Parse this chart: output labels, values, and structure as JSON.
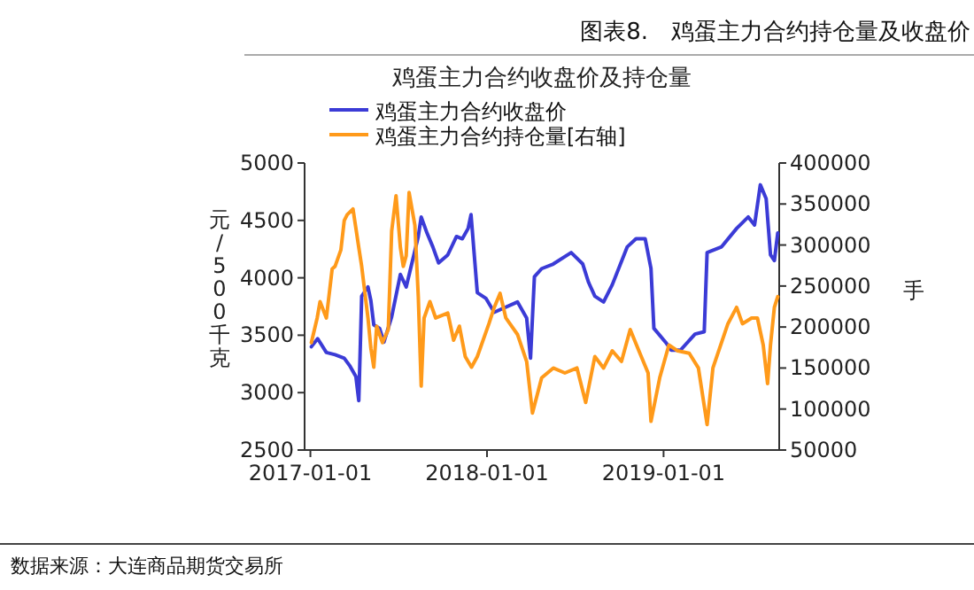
{
  "chart_data": {
    "type": "line",
    "title": "图表8.　鸡蛋主力合约持仓量及收盘价",
    "subtitle": "鸡蛋主力合约收盘价及持仓量",
    "ylabel": "元/500千克",
    "y2label": "手",
    "annotations": [
      "数据来源：大连商品期货交易所"
    ],
    "xlim": [
      "2016-12-20",
      "2019-08-28"
    ],
    "xticks": [
      "2017-01-01",
      "2018-01-01",
      "2019-01-01"
    ],
    "ylim": [
      2500,
      5000
    ],
    "yticks": [
      2500,
      3000,
      3500,
      4000,
      4500,
      5000
    ],
    "y2lim": [
      50000,
      400000
    ],
    "y2ticks": [
      50000,
      100000,
      150000,
      200000,
      250000,
      300000,
      350000,
      400000
    ],
    "legend": "top left",
    "grid": false,
    "marker": "none",
    "line_style": "solid",
    "series": [
      {
        "name": "鸡蛋主力合约收盘价",
        "color": "#3b3bd6",
        "x": [
          "2017-01-03",
          "2017-01-16",
          "2017-02-03",
          "2017-02-21",
          "2017-03-12",
          "2017-03-24",
          "2017-04-05",
          "2017-04-11",
          "2017-04-17",
          "2017-04-30",
          "2017-05-06",
          "2017-05-12",
          "2017-05-24",
          "2017-06-02",
          "2017-06-18",
          "2017-07-06",
          "2017-07-18",
          "2017-08-12",
          "2017-08-18",
          "2017-08-30",
          "2017-09-11",
          "2017-09-23",
          "2017-10-12",
          "2017-10-30",
          "2017-11-11",
          "2017-11-23",
          "2017-11-29",
          "2017-12-12",
          "2017-12-30",
          "2018-01-16",
          "2018-03-05",
          "2018-03-24",
          "2018-04-01",
          "2018-04-09",
          "2018-04-24",
          "2018-05-18",
          "2018-06-24",
          "2018-07-18",
          "2018-07-30",
          "2018-08-12",
          "2018-08-30",
          "2018-09-17",
          "2018-10-18",
          "2018-11-05",
          "2018-11-24",
          "2018-12-06",
          "2018-12-12",
          "2019-01-05",
          "2019-01-17",
          "2019-02-05",
          "2019-03-07",
          "2019-03-26",
          "2019-04-01",
          "2019-05-01",
          "2019-06-01",
          "2019-06-25",
          "2019-07-08",
          "2019-07-20",
          "2019-08-01",
          "2019-08-10",
          "2019-08-18",
          "2019-08-25"
        ],
        "values": [
          3400,
          3470,
          3350,
          3330,
          3300,
          3230,
          3140,
          2930,
          3840,
          3920,
          3800,
          3590,
          3560,
          3440,
          3660,
          4030,
          3920,
          4360,
          4530,
          4390,
          4270,
          4130,
          4200,
          4360,
          4340,
          4430,
          4550,
          3870,
          3820,
          3700,
          3790,
          3650,
          3300,
          4010,
          4080,
          4120,
          4220,
          4120,
          3960,
          3840,
          3790,
          3940,
          4270,
          4340,
          4340,
          4080,
          3560,
          3440,
          3370,
          3370,
          3510,
          3530,
          4220,
          4270,
          4430,
          4530,
          4460,
          4810,
          4690,
          4200,
          4150,
          4390
        ]
      },
      {
        "name": "鸡蛋主力合约持仓量[右轴]",
        "color": "#ff9a1a",
        "axis": "y2",
        "x": [
          "2017-01-03",
          "2017-01-15",
          "2017-01-21",
          "2017-02-03",
          "2017-02-15",
          "2017-02-21",
          "2017-03-05",
          "2017-03-12",
          "2017-03-18",
          "2017-03-30",
          "2017-04-11",
          "2017-04-17",
          "2017-04-30",
          "2017-05-06",
          "2017-05-12",
          "2017-05-18",
          "2017-05-30",
          "2017-06-11",
          "2017-06-18",
          "2017-06-27",
          "2017-07-06",
          "2017-07-12",
          "2017-07-18",
          "2017-07-24",
          "2017-08-05",
          "2017-08-12",
          "2017-08-18",
          "2017-08-24",
          "2017-09-05",
          "2017-09-17",
          "2017-10-12",
          "2017-10-24",
          "2017-11-05",
          "2017-11-17",
          "2017-11-30",
          "2017-12-12",
          "2018-01-05",
          "2018-01-16",
          "2018-01-28",
          "2018-02-09",
          "2018-03-05",
          "2018-03-24",
          "2018-04-05",
          "2018-04-24",
          "2018-05-18",
          "2018-06-11",
          "2018-07-06",
          "2018-07-24",
          "2018-08-12",
          "2018-08-30",
          "2018-09-17",
          "2018-10-06",
          "2018-10-24",
          "2018-11-11",
          "2018-11-30",
          "2018-12-06",
          "2018-12-24",
          "2019-01-12",
          "2019-01-30",
          "2019-02-23",
          "2019-03-14",
          "2019-04-01",
          "2019-04-13",
          "2019-05-14",
          "2019-06-01",
          "2019-06-13",
          "2019-07-02",
          "2019-07-14",
          "2019-07-26",
          "2019-08-04",
          "2019-08-10",
          "2019-08-18",
          "2019-08-25"
        ],
        "values": [
          181000,
          211000,
          231000,
          211000,
          271000,
          274000,
          294000,
          330000,
          337000,
          344000,
          297000,
          274000,
          211000,
          174000,
          151000,
          201000,
          181000,
          197000,
          317000,
          360000,
          297000,
          274000,
          287000,
          364000,
          324000,
          237000,
          128000,
          211000,
          231000,
          211000,
          217000,
          184000,
          201000,
          164000,
          151000,
          164000,
          204000,
          224000,
          241000,
          211000,
          191000,
          158000,
          95000,
          138000,
          150000,
          144000,
          150000,
          108000,
          164000,
          150000,
          171000,
          158000,
          197000,
          171000,
          144000,
          85000,
          138000,
          178000,
          171000,
          168000,
          150000,
          81000,
          150000,
          204000,
          224000,
          204000,
          211000,
          211000,
          178000,
          131000,
          178000,
          224000,
          237000
        ]
      }
    ]
  }
}
